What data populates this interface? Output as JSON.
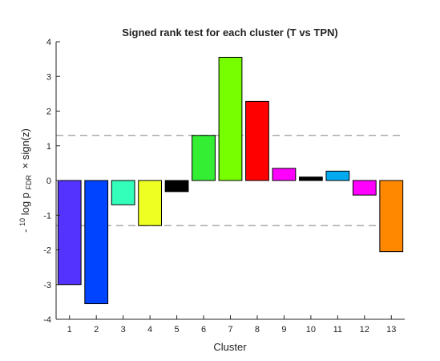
{
  "chart_data": {
    "type": "bar",
    "title": "Signed rank test for each cluster (T vs TPN)",
    "xlabel": "Cluster",
    "ylabel": {
      "prefix": "-",
      "sup": "10",
      "main": "log p",
      "sub": "FDR",
      "suffix": "× sign(z)"
    },
    "categories": [
      "1",
      "2",
      "3",
      "4",
      "5",
      "6",
      "7",
      "8",
      "9",
      "10",
      "11",
      "12",
      "13"
    ],
    "values": [
      -3.0,
      -3.55,
      -0.7,
      -1.3,
      -0.32,
      1.3,
      3.55,
      2.28,
      0.35,
      0.1,
      0.27,
      -0.42,
      -2.05
    ],
    "colors": [
      "#5533ff",
      "#0044ff",
      "#33ffbb",
      "#eeff22",
      "#000000",
      "#33ee33",
      "#77ff00",
      "#ff0000",
      "#ff00ff",
      "#000000",
      "#00aaee",
      "#ff00ff",
      "#ff8800"
    ],
    "ylim": [
      -4,
      4
    ],
    "yticks": [
      -4,
      -3,
      -2,
      -1,
      0,
      1,
      2,
      3,
      4
    ],
    "threshold_lines": [
      1.3,
      -1.3
    ],
    "grid": false
  }
}
